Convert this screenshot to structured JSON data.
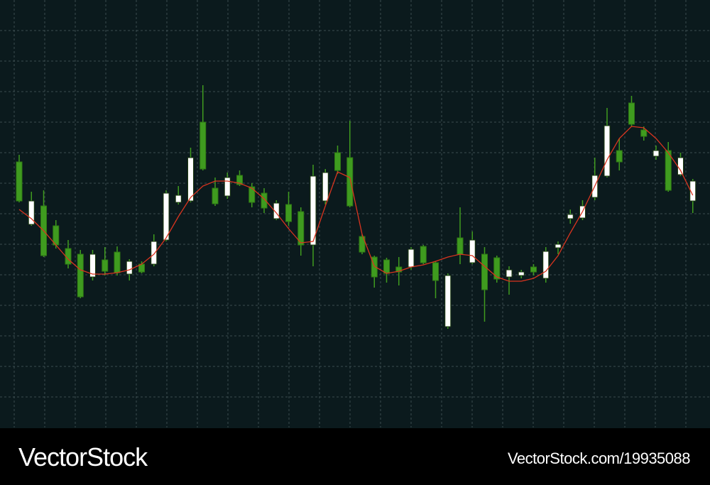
{
  "chart_data": {
    "type": "candlestick",
    "categories": [
      null,
      null,
      null,
      null,
      null,
      null,
      null,
      null,
      null,
      null,
      null,
      null,
      null,
      null,
      null,
      null,
      null,
      null,
      null,
      null,
      null,
      null,
      null,
      null,
      null,
      null,
      null,
      null,
      null,
      null,
      null,
      null,
      null,
      null,
      null,
      null,
      null,
      null,
      null,
      null,
      null,
      null,
      null,
      null,
      null,
      null,
      null,
      null,
      null,
      null,
      null,
      null,
      null,
      null,
      null,
      null
    ],
    "open": [
      374,
      286,
      312,
      284,
      252,
      244,
      212,
      236,
      247,
      216,
      230,
      230,
      264,
      317,
      319,
      430,
      337,
      326,
      355,
      339,
      330,
      294,
      314,
      304,
      257,
      319,
      387,
      380,
      269,
      240,
      236,
      226,
      226,
      255,
      232,
      142,
      267,
      232,
      244,
      239,
      212,
      214,
      226,
      210,
      253,
      294,
      295,
      324,
      354,
      390,
      457,
      419,
      382,
      390,
      356,
      319
    ],
    "high": [
      384,
      332,
      334,
      292,
      264,
      250,
      250,
      254,
      255,
      237,
      234,
      272,
      334,
      340,
      394,
      482,
      352,
      359,
      362,
      344,
      337,
      320,
      332,
      310,
      370,
      364,
      397,
      432,
      272,
      242,
      239,
      240,
      254,
      257,
      234,
      217,
      310,
      276,
      254,
      242,
      227,
      222,
      230,
      254,
      262,
      307,
      320,
      380,
      450,
      407,
      467,
      424,
      397,
      402,
      387,
      350
    ],
    "low": [
      317,
      284,
      240,
      252,
      224,
      182,
      207,
      214,
      214,
      207,
      217,
      227,
      262,
      314,
      317,
      362,
      312,
      322,
      340,
      310,
      302,
      292,
      284,
      242,
      227,
      314,
      357,
      310,
      244,
      197,
      204,
      200,
      222,
      230,
      182,
      139,
      230,
      230,
      149,
      204,
      187,
      210,
      214,
      204,
      244,
      287,
      292,
      320,
      352,
      362,
      424,
      404,
      377,
      332,
      354,
      302
    ],
    "close": [
      319,
      319,
      242,
      257,
      230,
      184,
      244,
      220,
      218,
      234,
      219,
      262,
      330,
      327,
      380,
      364,
      315,
      352,
      342,
      317,
      309,
      316,
      290,
      257,
      354,
      359,
      362,
      312,
      247,
      212,
      217,
      219,
      251,
      232,
      207,
      214,
      244,
      264,
      194,
      209,
      222,
      219,
      219,
      248,
      258,
      300,
      312,
      355,
      425,
      374,
      427,
      410,
      390,
      334,
      380,
      347
    ],
    "moving_average": {
      "color": "#d9341f",
      "values": [
        307,
        294,
        277,
        257,
        237,
        222,
        216,
        216,
        218,
        222,
        230,
        244,
        267,
        297,
        324,
        340,
        347,
        347,
        344,
        337,
        322,
        302,
        280,
        260,
        262,
        312,
        360,
        352,
        272,
        227,
        217,
        220,
        226,
        229,
        234,
        240,
        244,
        242,
        227,
        212,
        206,
        206,
        210,
        220,
        242,
        274,
        304,
        340,
        377,
        407,
        424,
        422,
        407,
        387,
        362,
        327
      ]
    },
    "up_color": "#ffffff",
    "down_color": "#3f9b1f",
    "ylim": [
      0,
      602
    ],
    "yticks": [
      43,
      86,
      129,
      172,
      215,
      258,
      301,
      344,
      387,
      430,
      473,
      516,
      559
    ],
    "grid": true
  },
  "footer": {
    "brand": "VectorStock",
    "image_id": "VectorStock.com/19935088"
  }
}
